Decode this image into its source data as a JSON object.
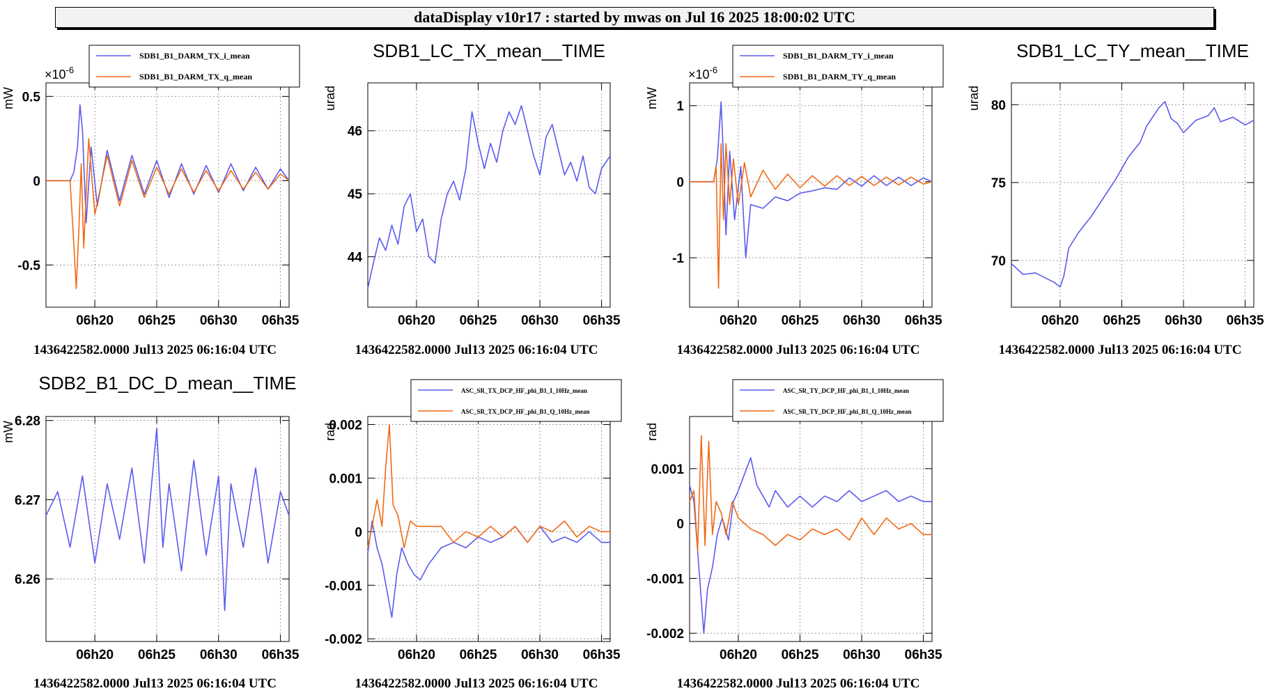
{
  "header": {
    "title": "dataDisplay v10r17 : started by mwas on Jul 16 2025 18:00:02 UTC"
  },
  "colors": {
    "series1": "#5a5af0",
    "series2": "#f06a14",
    "grid": "#9a9a9a"
  },
  "chart_data": [
    {
      "type": "line",
      "title": "",
      "ylabel": "mW",
      "exponent": "-6",
      "xticks": [
        "06h20",
        "06h25",
        "06h30",
        "06h35"
      ],
      "xlim": [
        16.05,
        35.7
      ],
      "ylim": [
        -0.75,
        0.58
      ],
      "yticks": [
        0.5,
        0,
        -0.5
      ],
      "yticklabels": [
        "0.5",
        "0",
        "-0.5"
      ],
      "footer": "1436422582.0000 Jul13 2025 06:16:04 UTC",
      "legend": [
        "SDB1_B1_DARM_TX_i_mean",
        "SDB1_B1_DARM_TX_q_mean"
      ],
      "series": [
        {
          "name": "SDB1_B1_DARM_TX_i_mean",
          "x": [
            16.05,
            18.0,
            18.3,
            18.6,
            18.8,
            19.0,
            19.3,
            19.7,
            20.2,
            21.0,
            22.0,
            23.0,
            24.0,
            25.0,
            26.0,
            27.0,
            28.0,
            29.0,
            30.0,
            31.0,
            32.0,
            33.0,
            34.0,
            35.0,
            35.7
          ],
          "y": [
            0,
            0,
            0.05,
            0.2,
            0.45,
            0.3,
            -0.25,
            0.2,
            -0.15,
            0.18,
            -0.12,
            0.15,
            -0.08,
            0.12,
            -0.1,
            0.1,
            -0.08,
            0.09,
            -0.07,
            0.1,
            -0.06,
            0.08,
            -0.05,
            0.07,
            0
          ]
        },
        {
          "name": "SDB1_B1_DARM_TX_q_mean",
          "x": [
            16.05,
            18.0,
            18.2,
            18.5,
            18.7,
            18.9,
            19.1,
            19.5,
            20.0,
            21.0,
            22.0,
            23.0,
            24.0,
            25.0,
            26.0,
            27.0,
            28.0,
            29.0,
            30.0,
            31.0,
            32.0,
            33.0,
            34.0,
            35.0,
            35.7
          ],
          "y": [
            0,
            0,
            -0.25,
            -0.64,
            -0.3,
            0.1,
            -0.4,
            0.25,
            -0.2,
            0.15,
            -0.15,
            0.12,
            -0.1,
            0.08,
            -0.08,
            0.07,
            -0.07,
            0.06,
            -0.06,
            0.06,
            -0.05,
            0.05,
            -0.05,
            0.04,
            0
          ]
        }
      ]
    },
    {
      "type": "line",
      "title": "SDB1_LC_TX_mean__TIME",
      "ylabel": "urad",
      "xticks": [
        "06h20",
        "06h25",
        "06h30",
        "06h35"
      ],
      "xlim": [
        16.05,
        35.7
      ],
      "ylim": [
        43.2,
        46.76
      ],
      "yticks": [
        46,
        45,
        44
      ],
      "yticklabels": [
        "46",
        "45",
        "44"
      ],
      "footer": "1436422582.0000 Jul13 2025 06:16:04 UTC",
      "legend": [],
      "series": [
        {
          "name": "",
          "x": [
            16.05,
            16.5,
            17.0,
            17.5,
            18.0,
            18.5,
            19.0,
            19.5,
            20.0,
            20.5,
            21.0,
            21.5,
            22.0,
            22.5,
            23.0,
            23.5,
            24.0,
            24.5,
            25.0,
            25.5,
            26.0,
            26.5,
            27.0,
            27.5,
            28.0,
            28.5,
            29.0,
            29.5,
            30.0,
            30.5,
            31.0,
            31.5,
            32.0,
            32.5,
            33.0,
            33.5,
            34.0,
            34.5,
            35.0,
            35.7
          ],
          "y": [
            43.5,
            43.9,
            44.3,
            44.1,
            44.5,
            44.2,
            44.8,
            45.0,
            44.4,
            44.6,
            44.0,
            43.9,
            44.6,
            45.0,
            45.2,
            44.9,
            45.4,
            46.3,
            45.8,
            45.4,
            45.8,
            45.5,
            46.0,
            46.3,
            46.1,
            46.4,
            46.0,
            45.6,
            45.3,
            45.9,
            46.1,
            45.7,
            45.3,
            45.5,
            45.2,
            45.6,
            45.1,
            45.0,
            45.4,
            45.6
          ]
        }
      ]
    },
    {
      "type": "line",
      "title": "",
      "ylabel": "mW",
      "exponent": "-6",
      "xticks": [
        "06h20",
        "06h25",
        "06h30",
        "06h35"
      ],
      "xlim": [
        16.05,
        35.7
      ],
      "ylim": [
        -1.65,
        1.3
      ],
      "yticks": [
        1,
        0,
        -1
      ],
      "yticklabels": [
        "1",
        "0",
        "-1"
      ],
      "footer": "1436422582.0000 Jul13 2025 06:16:04 UTC",
      "legend": [
        "SDB1_B1_DARM_TY_i_mean",
        "SDB1_B1_DARM_TY_q_mean"
      ],
      "series": [
        {
          "name": "SDB1_B1_DARM_TY_i_mean",
          "x": [
            16.05,
            18.0,
            18.3,
            18.6,
            18.8,
            19.0,
            19.3,
            19.7,
            20.2,
            20.6,
            21.0,
            22.0,
            23.0,
            24.0,
            25.0,
            26.0,
            27.0,
            28.0,
            29.0,
            30.0,
            31.0,
            32.0,
            33.0,
            34.0,
            35.0,
            35.7
          ],
          "y": [
            0,
            0,
            0.3,
            1.05,
            0.3,
            -0.7,
            0.4,
            -0.5,
            0.2,
            -1.0,
            -0.3,
            -0.35,
            -0.2,
            -0.25,
            -0.15,
            -0.12,
            -0.08,
            -0.1,
            0.05,
            -0.06,
            0.08,
            -0.05,
            0.06,
            -0.05,
            0.05,
            0
          ]
        },
        {
          "name": "SDB1_B1_DARM_TY_q_mean",
          "x": [
            16.05,
            18.0,
            18.2,
            18.4,
            18.6,
            18.8,
            19.0,
            19.3,
            19.6,
            20.0,
            20.5,
            21.0,
            22.0,
            23.0,
            24.0,
            25.0,
            26.0,
            27.0,
            28.0,
            29.0,
            30.0,
            31.0,
            32.0,
            33.0,
            34.0,
            35.0,
            35.7
          ],
          "y": [
            0,
            0,
            0.2,
            -1.4,
            0.5,
            -0.5,
            0.5,
            -0.3,
            0.3,
            -0.3,
            0.25,
            -0.2,
            0.15,
            -0.1,
            0.1,
            -0.08,
            0.08,
            -0.06,
            0.08,
            -0.05,
            0.07,
            -0.05,
            0.06,
            -0.04,
            0.06,
            -0.03,
            0
          ]
        }
      ]
    },
    {
      "type": "line",
      "title": "SDB1_LC_TY_mean__TIME",
      "ylabel": "urad",
      "xticks": [
        "06h20",
        "06h25",
        "06h30",
        "06h35"
      ],
      "xlim": [
        16.05,
        35.7
      ],
      "ylim": [
        67.0,
        81.4
      ],
      "yticks": [
        80,
        75,
        70
      ],
      "yticklabels": [
        "80",
        "75",
        "70"
      ],
      "footer": "1436422582.0000 Jul13 2025 06:16:04 UTC",
      "legend": [],
      "series": [
        {
          "name": "",
          "x": [
            16.05,
            17.0,
            18.0,
            19.0,
            19.5,
            20.0,
            20.3,
            20.7,
            21.5,
            22.5,
            23.5,
            24.5,
            25.5,
            26.5,
            27.0,
            28.0,
            28.5,
            29.0,
            29.5,
            30.0,
            31.0,
            32.0,
            32.5,
            33.0,
            34.0,
            35.0,
            35.7
          ],
          "y": [
            69.8,
            69.1,
            69.2,
            68.8,
            68.6,
            68.3,
            69.0,
            70.8,
            71.8,
            72.8,
            74.0,
            75.2,
            76.6,
            77.6,
            78.6,
            79.8,
            80.2,
            79.1,
            78.8,
            78.2,
            79.0,
            79.3,
            79.8,
            78.9,
            79.2,
            78.7,
            79.0
          ]
        }
      ]
    },
    {
      "type": "line",
      "title": "SDB2_B1_DC_D_mean__TIME",
      "ylabel": "mW",
      "xticks": [
        "06h20",
        "06h25",
        "06h30",
        "06h35"
      ],
      "xlim": [
        16.05,
        35.7
      ],
      "ylim": [
        6.2521,
        6.2805
      ],
      "yticks": [
        6.28,
        6.27,
        6.26
      ],
      "yticklabels": [
        "6.28",
        "6.27",
        "6.26"
      ],
      "footer": "1436422582.0000 Jul13 2025 06:16:04 UTC",
      "legend": [],
      "series": [
        {
          "name": "",
          "x": [
            16.05,
            17.0,
            18.0,
            19.0,
            20.0,
            21.0,
            22.0,
            23.0,
            24.0,
            25.0,
            25.5,
            26.0,
            27.0,
            28.0,
            29.0,
            30.0,
            30.5,
            31.0,
            32.0,
            33.0,
            34.0,
            35.0,
            35.7
          ],
          "y": [
            6.268,
            6.271,
            6.264,
            6.273,
            6.262,
            6.272,
            6.265,
            6.274,
            6.262,
            6.279,
            6.264,
            6.272,
            6.261,
            6.275,
            6.263,
            6.273,
            6.256,
            6.272,
            6.264,
            6.274,
            6.262,
            6.271,
            6.268
          ]
        }
      ]
    },
    {
      "type": "line",
      "title": "",
      "ylabel": "rad",
      "xticks": [
        "06h20",
        "06h25",
        "06h30",
        "06h35"
      ],
      "xlim": [
        16.05,
        35.7
      ],
      "ylim": [
        -0.00205,
        0.00215
      ],
      "yticks": [
        0.002,
        0.001,
        0,
        -0.001,
        -0.002
      ],
      "yticklabels": [
        "0.002",
        "0.001",
        "0",
        "-0.001",
        "-0.002"
      ],
      "footer": "1436422582.0000 Jul13 2025 06:16:04 UTC",
      "legend": [
        "ASC_SR_TX_DCP_HF_phi_B1_I_10Hz_mean",
        "ASC_SR_TX_DCP_HF_phi_B1_Q_10Hz_mean"
      ],
      "series": [
        {
          "name": "ASC_SR_TX_DCP_HF_phi_B1_I_10Hz_mean",
          "x": [
            16.05,
            16.4,
            16.8,
            17.2,
            17.6,
            18.0,
            18.4,
            18.8,
            19.3,
            19.8,
            20.3,
            21.0,
            22.0,
            23.0,
            24.0,
            25.0,
            26.0,
            27.0,
            28.0,
            29.0,
            30.0,
            31.0,
            32.0,
            33.0,
            34.0,
            35.0,
            35.7
          ],
          "y": [
            -0.0004,
            0.0002,
            -0.0003,
            -0.0006,
            -0.0011,
            -0.0016,
            -0.0008,
            -0.0003,
            -0.0006,
            -0.0008,
            -0.0009,
            -0.0006,
            -0.0003,
            -0.0002,
            -0.0003,
            -0.0001,
            -0.0002,
            -0.0001,
            0.0001,
            -0.0002,
            0.0001,
            -0.0002,
            -0.0001,
            -0.0002,
            0.0,
            -0.0002,
            -0.0002
          ]
        },
        {
          "name": "ASC_SR_TX_DCP_HF_phi_B1_Q_10Hz_mean",
          "x": [
            16.05,
            16.4,
            16.8,
            17.2,
            17.5,
            17.8,
            18.1,
            18.5,
            19.0,
            19.5,
            20.0,
            21.0,
            22.0,
            23.0,
            24.0,
            25.0,
            26.0,
            27.0,
            28.0,
            29.0,
            30.0,
            31.0,
            32.0,
            33.0,
            34.0,
            35.0,
            35.7
          ],
          "y": [
            -0.0003,
            0.0001,
            0.0006,
            0.0001,
            0.0012,
            0.002,
            0.0005,
            0.0003,
            -0.0003,
            0.0002,
            0.0001,
            0.0001,
            0.0001,
            -0.0002,
            0.0,
            -0.0001,
            0.0001,
            -0.0001,
            0.0001,
            -0.0002,
            0.0001,
            0.0,
            0.0002,
            -0.0001,
            0.0001,
            0.0,
            0.0
          ]
        }
      ]
    },
    {
      "type": "line",
      "title": "",
      "ylabel": "rad",
      "xticks": [
        "06h20",
        "06h25",
        "06h30",
        "06h35"
      ],
      "xlim": [
        16.05,
        35.7
      ],
      "ylim": [
        -0.00215,
        0.00195
      ],
      "yticks": [
        0.001,
        0,
        -0.001,
        -0.002
      ],
      "yticklabels": [
        "0.001",
        "0",
        "-0.001",
        "-0.002"
      ],
      "footer": "1436422582.0000 Jul13 2025 06:16:04 UTC",
      "legend": [
        "ASC_SR_TY_DCP_HF_phi_B1_I_10Hz_mean",
        "ASC_SR_TY_DCP_HF_phi_B1_Q_10Hz_mean"
      ],
      "series": [
        {
          "name": "ASC_SR_TY_DCP_HF_phi_B1_I_10Hz_mean",
          "x": [
            16.05,
            16.4,
            16.8,
            17.2,
            17.5,
            17.9,
            18.3,
            18.7,
            19.2,
            19.6,
            20.0,
            20.5,
            21.0,
            21.5,
            22.0,
            22.5,
            23.0,
            24.0,
            25.0,
            26.0,
            27.0,
            28.0,
            29.0,
            30.0,
            31.0,
            32.0,
            33.0,
            34.0,
            35.0,
            35.7
          ],
          "y": [
            0.0007,
            0.0004,
            -0.0008,
            -0.002,
            -0.0012,
            -0.0008,
            -0.0002,
            0.0001,
            -0.0003,
            0.0004,
            0.0006,
            0.0009,
            0.0012,
            0.0007,
            0.0005,
            0.0003,
            0.0006,
            0.0003,
            0.0005,
            0.0003,
            0.0005,
            0.0004,
            0.0006,
            0.0004,
            0.0005,
            0.0006,
            0.0004,
            0.0005,
            0.0004,
            0.0004
          ]
        },
        {
          "name": "ASC_SR_TY_DCP_HF_phi_B1_Q_10Hz_mean",
          "x": [
            16.05,
            16.4,
            16.7,
            17.0,
            17.3,
            17.6,
            17.9,
            18.2,
            18.6,
            19.0,
            19.5,
            20.0,
            21.0,
            22.0,
            23.0,
            24.0,
            25.0,
            26.0,
            27.0,
            28.0,
            29.0,
            30.0,
            31.0,
            32.0,
            33.0,
            34.0,
            35.0,
            35.7
          ],
          "y": [
            0.0004,
            0.0006,
            -0.0005,
            0.0016,
            -0.0004,
            0.0015,
            -0.0002,
            0.0004,
            0.0002,
            -0.0002,
            0.0004,
            0.0001,
            -0.0001,
            -0.0002,
            -0.0004,
            -0.0002,
            -0.0003,
            -0.0001,
            -0.0002,
            -0.0001,
            -0.0003,
            0.0001,
            -0.0002,
            0.0001,
            -0.0001,
            0.0,
            -0.0002,
            -0.0002
          ]
        }
      ]
    }
  ]
}
